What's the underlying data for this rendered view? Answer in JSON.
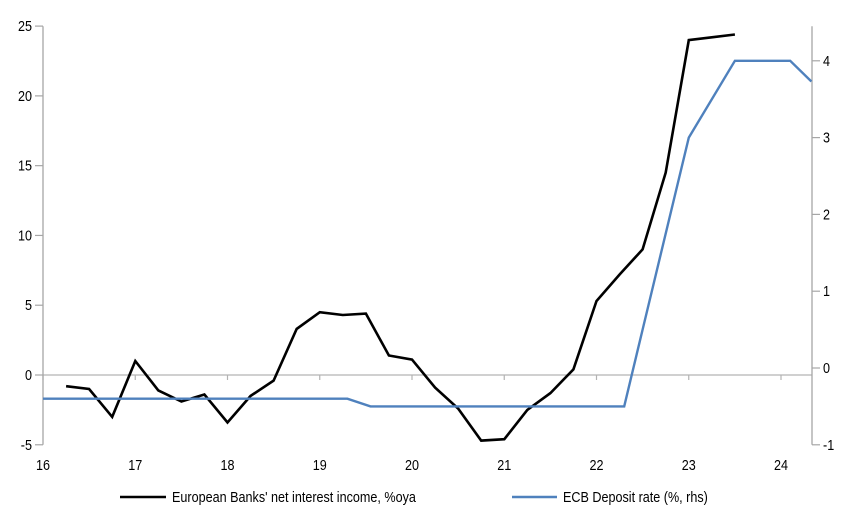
{
  "legend": [
    {
      "label": "European Banks' net interest income, %oya",
      "color": "#000000"
    },
    {
      "label": "ECB Deposit rate (%, rhs)",
      "color": "#4f81bd"
    }
  ],
  "colors": {
    "axis": "#a6a6a6",
    "gridline": "#b3b3b3",
    "series_nii": "#000000",
    "series_ecb": "#4f81bd",
    "text": "#000000",
    "background": "#ffffff"
  },
  "chart_data": {
    "type": "line",
    "title": "",
    "xlabel": "",
    "ylabel_left": "",
    "ylabel_right": "",
    "grid": "single horizontal zero gridline only",
    "legend_position": "bottom-center",
    "x_axis": {
      "ticks": [
        16,
        17,
        18,
        19,
        20,
        21,
        22,
        23,
        24
      ],
      "range": [
        16,
        24.33
      ]
    },
    "left_axis": {
      "ticks": [
        -5,
        0,
        5,
        10,
        15,
        20,
        25
      ],
      "range": [
        -5,
        25
      ]
    },
    "right_axis": {
      "ticks": [
        -1,
        0,
        1,
        2,
        3,
        4
      ],
      "range": [
        -1,
        4.45
      ]
    },
    "series": [
      {
        "name": "European Banks' net interest income, %oya",
        "axis": "left",
        "color": "#000000",
        "width": 2.6,
        "points": [
          [
            16.25,
            -0.8
          ],
          [
            16.5,
            -1.0
          ],
          [
            16.75,
            -3.0
          ],
          [
            17.0,
            1.0
          ],
          [
            17.25,
            -1.1
          ],
          [
            17.5,
            -1.9
          ],
          [
            17.75,
            -1.4
          ],
          [
            18.0,
            -3.4
          ],
          [
            18.25,
            -1.5
          ],
          [
            18.5,
            -0.4
          ],
          [
            18.75,
            3.3
          ],
          [
            19.0,
            4.5
          ],
          [
            19.25,
            4.3
          ],
          [
            19.5,
            4.4
          ],
          [
            19.75,
            1.4
          ],
          [
            20.0,
            1.1
          ],
          [
            20.25,
            -0.9
          ],
          [
            20.5,
            -2.4
          ],
          [
            20.75,
            -4.7
          ],
          [
            21.0,
            -4.6
          ],
          [
            21.25,
            -2.5
          ],
          [
            21.5,
            -1.3
          ],
          [
            21.75,
            0.4
          ],
          [
            22.0,
            5.3
          ],
          [
            22.25,
            7.2
          ],
          [
            22.5,
            9.0
          ],
          [
            22.75,
            14.5
          ],
          [
            23.0,
            24.0
          ],
          [
            23.25,
            24.2
          ],
          [
            23.5,
            24.4
          ]
        ]
      },
      {
        "name": "ECB Deposit rate (%, rhs)",
        "axis": "right",
        "color": "#4f81bd",
        "width": 2.4,
        "points": [
          [
            16.0,
            -0.4
          ],
          [
            19.3,
            -0.4
          ],
          [
            19.55,
            -0.5
          ],
          [
            22.3,
            -0.5
          ],
          [
            22.5,
            0.5
          ],
          [
            23.0,
            3.0
          ],
          [
            23.5,
            4.0
          ],
          [
            24.1,
            4.0
          ],
          [
            24.33,
            3.73
          ]
        ]
      }
    ]
  }
}
